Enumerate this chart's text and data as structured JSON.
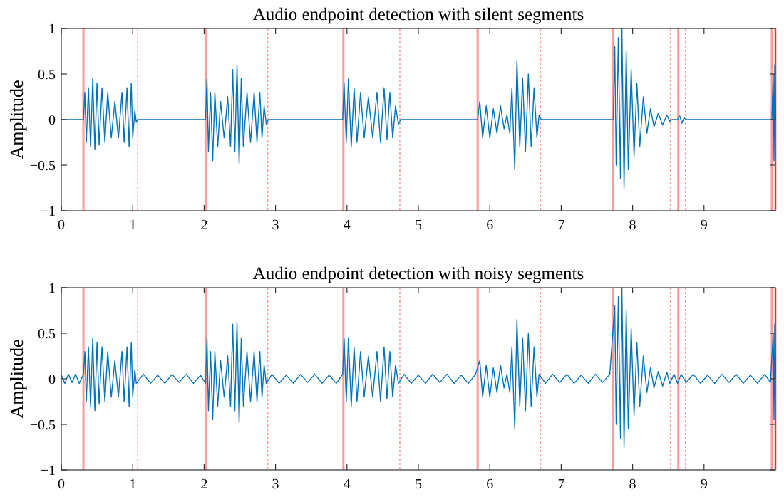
{
  "chart_data": [
    {
      "type": "line",
      "title": "Audio endpoint detection with silent segments",
      "ylabel": "Amplitude",
      "xlim": [
        0,
        10
      ],
      "xticks": [
        0,
        1,
        2,
        3,
        4,
        5,
        6,
        7,
        8,
        9
      ],
      "ylim": [
        -1,
        1
      ],
      "yticks": [
        -1,
        -0.5,
        0,
        0.5,
        1
      ],
      "grid": false,
      "series": [
        {
          "color": "#0072bd",
          "x": [
            0,
            0.31,
            0.33,
            0.35,
            0.38,
            0.41,
            0.44,
            0.47,
            0.5,
            0.53,
            0.57,
            0.61,
            0.65,
            0.7,
            0.75,
            0.8,
            0.85,
            0.88,
            0.92,
            0.95,
            0.98,
            1.0,
            1.03,
            1.05,
            1.07,
            2.02,
            2.04,
            2.06,
            2.09,
            2.12,
            2.15,
            2.19,
            2.23,
            2.28,
            2.33,
            2.37,
            2.4,
            2.43,
            2.46,
            2.49,
            2.52,
            2.55,
            2.6,
            2.65,
            2.7,
            2.74,
            2.78,
            2.81,
            2.84,
            2.87,
            2.9,
            3.94,
            3.96,
            3.99,
            4.02,
            4.06,
            4.1,
            4.14,
            4.19,
            4.24,
            4.3,
            4.36,
            4.42,
            4.47,
            4.52,
            4.56,
            4.6,
            4.64,
            4.68,
            4.72,
            4.75,
            5.83,
            5.86,
            5.9,
            5.95,
            6.0,
            6.05,
            6.1,
            6.15,
            6.2,
            6.24,
            6.28,
            6.31,
            6.35,
            6.38,
            6.42,
            6.46,
            6.5,
            6.54,
            6.58,
            6.62,
            6.66,
            6.69,
            6.72,
            7.73,
            7.75,
            7.77,
            7.8,
            7.83,
            7.85,
            7.88,
            7.91,
            7.94,
            7.98,
            8.02,
            8.06,
            8.1,
            8.15,
            8.2,
            8.25,
            8.3,
            8.36,
            8.42,
            8.48,
            8.52,
            8.55,
            8.63,
            8.66,
            8.69,
            8.72,
            8.75,
            9.95,
            9.97,
            9.98,
            9.99,
            10
          ],
          "values": [
            0,
            0,
            0.3,
            -0.25,
            0.35,
            -0.3,
            0.45,
            -0.33,
            0.4,
            -0.28,
            0.35,
            -0.25,
            0.3,
            -0.2,
            0.2,
            -0.2,
            0.3,
            -0.25,
            0.35,
            -0.3,
            0.4,
            -0.2,
            0.1,
            -0.03,
            0,
            0,
            0.45,
            -0.35,
            0.3,
            -0.45,
            0.3,
            -0.3,
            0.2,
            -0.2,
            0.25,
            -0.3,
            0.55,
            -0.35,
            0.6,
            -0.48,
            0.45,
            -0.3,
            0.3,
            -0.25,
            0.3,
            -0.25,
            0.3,
            -0.2,
            0.15,
            -0.05,
            0,
            0,
            0.4,
            -0.25,
            0.45,
            -0.3,
            0.35,
            -0.25,
            0.3,
            -0.2,
            0.25,
            -0.2,
            0.3,
            -0.25,
            0.35,
            -0.22,
            0.3,
            -0.2,
            0.15,
            -0.05,
            0,
            0,
            0.2,
            -0.2,
            0.15,
            -0.2,
            0.12,
            -0.15,
            0.15,
            -0.1,
            0.05,
            -0.15,
            0.35,
            -0.55,
            0.65,
            -0.3,
            0.45,
            -0.35,
            0.5,
            -0.3,
            0.35,
            -0.2,
            0.05,
            0,
            0,
            0.8,
            -0.5,
            0.9,
            -0.65,
            1.0,
            -0.75,
            0.75,
            -0.55,
            0.55,
            -0.4,
            0.4,
            -0.3,
            0.25,
            -0.15,
            0.12,
            -0.08,
            0.07,
            -0.06,
            0.05,
            -0.02,
            0,
            0,
            0.04,
            -0.04,
            0.02,
            0,
            0,
            0.5,
            -0.45,
            0.6,
            0
          ]
        }
      ],
      "ref_lines": [
        {
          "axis": "x",
          "value": 0.31,
          "color": "#ff9999",
          "line_style": "solid"
        },
        {
          "axis": "x",
          "value": 1.07,
          "color": "#ff9999",
          "line_style": "dotted"
        },
        {
          "axis": "x",
          "value": 2.02,
          "color": "#ff9999",
          "line_style": "solid"
        },
        {
          "axis": "x",
          "value": 2.89,
          "color": "#ff9999",
          "line_style": "dotted"
        },
        {
          "axis": "x",
          "value": 3.95,
          "color": "#ff9999",
          "line_style": "solid"
        },
        {
          "axis": "x",
          "value": 4.74,
          "color": "#ff9999",
          "line_style": "dotted"
        },
        {
          "axis": "x",
          "value": 5.83,
          "color": "#ff9999",
          "line_style": "solid"
        },
        {
          "axis": "x",
          "value": 6.71,
          "color": "#ff9999",
          "line_style": "dotted"
        },
        {
          "axis": "x",
          "value": 7.73,
          "color": "#ff9999",
          "line_style": "solid"
        },
        {
          "axis": "x",
          "value": 8.53,
          "color": "#ff9999",
          "line_style": "dotted"
        },
        {
          "axis": "x",
          "value": 8.64,
          "color": "#ff9999",
          "line_style": "solid"
        },
        {
          "axis": "x",
          "value": 8.74,
          "color": "#ff9999",
          "line_style": "dotted"
        },
        {
          "axis": "x",
          "value": 9.95,
          "color": "#ff9999",
          "line_style": "solid"
        },
        {
          "axis": "x",
          "value": 10,
          "color": "#ff9999",
          "line_style": "solid"
        }
      ]
    },
    {
      "type": "line",
      "title": "Audio endpoint detection with noisy segments",
      "ylabel": "Amplitude",
      "xlim": [
        0,
        10
      ],
      "xticks": [
        0,
        1,
        2,
        3,
        4,
        5,
        6,
        7,
        8,
        9
      ],
      "ylim": [
        -1,
        1
      ],
      "yticks": [
        -1,
        -0.5,
        0,
        0.5,
        1
      ],
      "grid": false,
      "series": [
        {
          "color": "#0072bd",
          "x": [
            0,
            0.05,
            0.1,
            0.15,
            0.2,
            0.25,
            0.31,
            0.33,
            0.35,
            0.38,
            0.41,
            0.44,
            0.47,
            0.5,
            0.53,
            0.57,
            0.61,
            0.65,
            0.7,
            0.75,
            0.8,
            0.85,
            0.88,
            0.92,
            0.95,
            0.98,
            1.0,
            1.03,
            1.05,
            1.15,
            1.25,
            1.35,
            1.45,
            1.55,
            1.65,
            1.75,
            1.85,
            1.95,
            2.02,
            2.04,
            2.06,
            2.09,
            2.12,
            2.15,
            2.19,
            2.23,
            2.28,
            2.33,
            2.37,
            2.4,
            2.43,
            2.46,
            2.49,
            2.52,
            2.55,
            2.6,
            2.65,
            2.7,
            2.74,
            2.78,
            2.81,
            2.84,
            2.87,
            2.95,
            3.05,
            3.15,
            3.25,
            3.35,
            3.45,
            3.55,
            3.65,
            3.75,
            3.85,
            3.94,
            3.96,
            3.99,
            4.02,
            4.06,
            4.1,
            4.14,
            4.19,
            4.24,
            4.3,
            4.36,
            4.42,
            4.47,
            4.52,
            4.56,
            4.6,
            4.64,
            4.68,
            4.72,
            4.8,
            4.9,
            5.0,
            5.1,
            5.2,
            5.3,
            5.4,
            5.5,
            5.6,
            5.7,
            5.8,
            5.86,
            5.9,
            5.95,
            6.0,
            6.05,
            6.1,
            6.15,
            6.2,
            6.24,
            6.28,
            6.31,
            6.35,
            6.38,
            6.42,
            6.46,
            6.5,
            6.54,
            6.58,
            6.62,
            6.66,
            6.69,
            6.78,
            6.88,
            6.98,
            7.08,
            7.18,
            7.28,
            7.38,
            7.48,
            7.58,
            7.68,
            7.75,
            7.77,
            7.8,
            7.83,
            7.85,
            7.88,
            7.91,
            7.94,
            7.98,
            8.02,
            8.06,
            8.1,
            8.15,
            8.2,
            8.25,
            8.3,
            8.36,
            8.42,
            8.48,
            8.52,
            8.58,
            8.63,
            8.68,
            8.75,
            8.85,
            8.95,
            9.05,
            9.15,
            9.25,
            9.35,
            9.45,
            9.55,
            9.65,
            9.75,
            9.85,
            9.93,
            9.97,
            9.98,
            9.99,
            10
          ],
          "values": [
            0.04,
            -0.05,
            0.05,
            -0.04,
            0.05,
            -0.05,
            0.05,
            0.3,
            -0.25,
            0.35,
            -0.3,
            0.45,
            -0.35,
            0.4,
            -0.28,
            0.35,
            -0.25,
            0.3,
            -0.2,
            0.2,
            -0.2,
            0.3,
            -0.25,
            0.35,
            -0.3,
            0.4,
            -0.2,
            0.1,
            -0.05,
            0.05,
            -0.05,
            0.04,
            -0.05,
            0.05,
            -0.04,
            0.05,
            -0.05,
            0.04,
            -0.05,
            0.45,
            -0.35,
            0.3,
            -0.45,
            0.3,
            -0.3,
            0.2,
            -0.2,
            0.25,
            -0.3,
            0.6,
            -0.35,
            0.62,
            -0.48,
            0.45,
            -0.3,
            0.3,
            -0.25,
            0.3,
            -0.25,
            0.3,
            -0.2,
            0.15,
            -0.05,
            0.05,
            -0.05,
            0.04,
            -0.05,
            0.05,
            -0.04,
            0.05,
            -0.05,
            0.04,
            -0.05,
            0.05,
            0.45,
            -0.25,
            0.45,
            -0.3,
            0.35,
            -0.25,
            0.3,
            -0.2,
            0.25,
            -0.2,
            0.3,
            -0.25,
            0.35,
            -0.22,
            0.3,
            -0.2,
            0.15,
            -0.05,
            0.05,
            -0.05,
            0.04,
            -0.05,
            0.05,
            -0.04,
            0.05,
            -0.05,
            0.04,
            -0.05,
            0.05,
            0.2,
            -0.2,
            0.15,
            -0.2,
            0.12,
            -0.15,
            0.15,
            -0.1,
            0.05,
            -0.15,
            0.35,
            -0.55,
            0.65,
            -0.3,
            0.45,
            -0.35,
            0.5,
            -0.3,
            0.35,
            -0.2,
            0.05,
            -0.05,
            0.05,
            -0.04,
            0.05,
            -0.05,
            0.04,
            -0.05,
            0.05,
            -0.04,
            0.05,
            0.8,
            -0.5,
            0.9,
            -0.65,
            1.0,
            -0.75,
            0.75,
            -0.55,
            0.55,
            -0.4,
            0.4,
            -0.3,
            0.25,
            -0.15,
            0.12,
            -0.1,
            0.08,
            -0.08,
            0.07,
            -0.05,
            0.05,
            -0.05,
            0.05,
            -0.04,
            0.05,
            -0.05,
            0.04,
            -0.05,
            0.05,
            -0.04,
            0.05,
            -0.05,
            0.04,
            -0.05,
            0.05,
            -0.04,
            0.5,
            -0.45,
            0.6,
            0
          ]
        }
      ],
      "ref_lines": [
        {
          "axis": "x",
          "value": 0.31,
          "color": "#ff9999",
          "line_style": "solid"
        },
        {
          "axis": "x",
          "value": 1.07,
          "color": "#ff9999",
          "line_style": "dotted"
        },
        {
          "axis": "x",
          "value": 2.02,
          "color": "#ff9999",
          "line_style": "solid"
        },
        {
          "axis": "x",
          "value": 2.89,
          "color": "#ff9999",
          "line_style": "dotted"
        },
        {
          "axis": "x",
          "value": 3.95,
          "color": "#ff9999",
          "line_style": "solid"
        },
        {
          "axis": "x",
          "value": 4.74,
          "color": "#ff9999",
          "line_style": "dotted"
        },
        {
          "axis": "x",
          "value": 5.83,
          "color": "#ff9999",
          "line_style": "solid"
        },
        {
          "axis": "x",
          "value": 6.71,
          "color": "#ff9999",
          "line_style": "dotted"
        },
        {
          "axis": "x",
          "value": 7.73,
          "color": "#ff9999",
          "line_style": "solid"
        },
        {
          "axis": "x",
          "value": 8.53,
          "color": "#ff9999",
          "line_style": "dotted"
        },
        {
          "axis": "x",
          "value": 8.64,
          "color": "#ff9999",
          "line_style": "solid"
        },
        {
          "axis": "x",
          "value": 8.74,
          "color": "#ff9999",
          "line_style": "dotted"
        },
        {
          "axis": "x",
          "value": 9.95,
          "color": "#ff9999",
          "line_style": "solid"
        },
        {
          "axis": "x",
          "value": 10,
          "color": "#ff9999",
          "line_style": "solid"
        }
      ]
    }
  ]
}
